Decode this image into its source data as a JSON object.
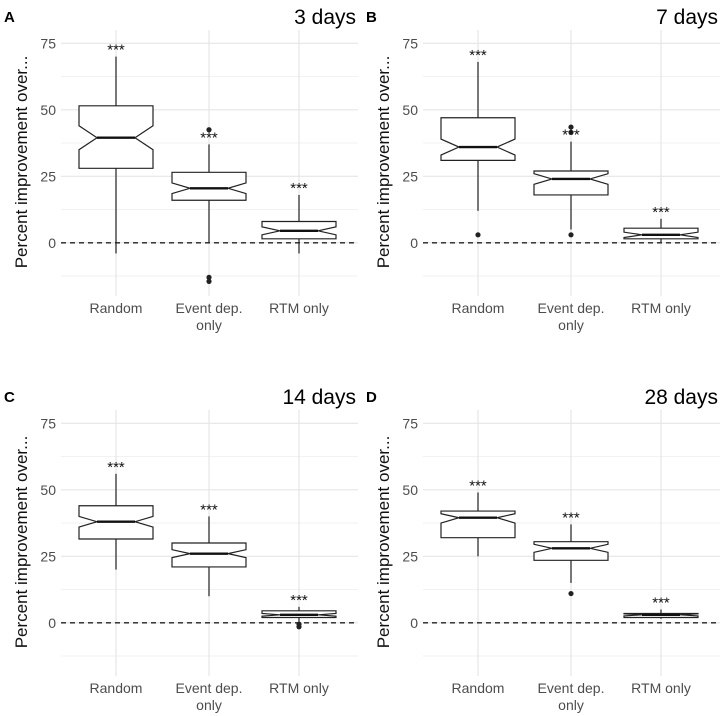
{
  "chart_data": [
    {
      "type": "box",
      "panel_label": "A",
      "title": "3 days",
      "ylabel": "Percent improvement over...",
      "xlabel": "",
      "ylim": [
        -20,
        80
      ],
      "yticks": [
        0,
        25,
        50,
        75
      ],
      "grid": true,
      "reference_line": 0,
      "categories": [
        "Random",
        "Event dep.\nonly",
        "RTM only"
      ],
      "boxes": [
        {
          "name": "Random",
          "whisker_low": -4,
          "q1": 28,
          "median": 39.5,
          "q3": 51.5,
          "whisker_high": 70,
          "notch_low": 35,
          "notch_high": 44,
          "outliers": [],
          "significance": "***"
        },
        {
          "name": "Event dep. only",
          "whisker_low": 0,
          "q1": 16,
          "median": 20.5,
          "q3": 26.5,
          "whisker_high": 37,
          "notch_low": 18.5,
          "notch_high": 22.5,
          "outliers": [
            42.5,
            -13,
            -14.5
          ],
          "significance": "***"
        },
        {
          "name": "RTM only",
          "whisker_low": -4,
          "q1": 1.5,
          "median": 4.5,
          "q3": 8,
          "whisker_high": 18,
          "notch_low": 3,
          "notch_high": 6,
          "outliers": [],
          "significance": "***"
        }
      ]
    },
    {
      "type": "box",
      "panel_label": "B",
      "title": "7 days",
      "ylabel": "Percent improvement over...",
      "xlabel": "",
      "ylim": [
        -20,
        80
      ],
      "yticks": [
        0,
        25,
        50,
        75
      ],
      "grid": true,
      "reference_line": 0,
      "categories": [
        "Random",
        "Event dep.\nonly",
        "RTM only"
      ],
      "boxes": [
        {
          "name": "Random",
          "whisker_low": 12,
          "q1": 31,
          "median": 36,
          "q3": 47,
          "whisker_high": 68,
          "notch_low": 33,
          "notch_high": 39,
          "outliers": [
            3
          ],
          "significance": "***"
        },
        {
          "name": "Event dep. only",
          "whisker_low": 5,
          "q1": 18,
          "median": 24,
          "q3": 27,
          "whisker_high": 38,
          "notch_low": 22,
          "notch_high": 26,
          "outliers": [
            43.5,
            41.5,
            3
          ],
          "significance": "***"
        },
        {
          "name": "RTM only",
          "whisker_low": 0,
          "q1": 1.5,
          "median": 3,
          "q3": 5.5,
          "whisker_high": 9,
          "notch_low": 2,
          "notch_high": 4,
          "outliers": [],
          "significance": "***"
        }
      ]
    },
    {
      "type": "box",
      "panel_label": "C",
      "title": "14 days",
      "ylabel": "Percent improvement over...",
      "xlabel": "",
      "ylim": [
        -20,
        80
      ],
      "yticks": [
        0,
        25,
        50,
        75
      ],
      "grid": true,
      "reference_line": 0,
      "categories": [
        "Random",
        "Event dep.\nonly",
        "RTM only"
      ],
      "boxes": [
        {
          "name": "Random",
          "whisker_low": 20,
          "q1": 31.5,
          "median": 38,
          "q3": 44,
          "whisker_high": 56,
          "notch_low": 36,
          "notch_high": 40,
          "outliers": [],
          "significance": "***"
        },
        {
          "name": "Event dep. only",
          "whisker_low": 10,
          "q1": 21,
          "median": 26,
          "q3": 30,
          "whisker_high": 40,
          "notch_low": 24.5,
          "notch_high": 27.5,
          "outliers": [],
          "significance": "***"
        },
        {
          "name": "RTM only",
          "whisker_low": 0.5,
          "q1": 2,
          "median": 3,
          "q3": 4.5,
          "whisker_high": 6,
          "notch_low": 2.5,
          "notch_high": 3.5,
          "outliers": [
            -0.5,
            -1.5
          ],
          "significance": "***"
        }
      ]
    },
    {
      "type": "box",
      "panel_label": "D",
      "title": "28 days",
      "ylabel": "Percent improvement over...",
      "xlabel": "",
      "ylim": [
        -20,
        80
      ],
      "yticks": [
        0,
        25,
        50,
        75
      ],
      "grid": true,
      "reference_line": 0,
      "categories": [
        "Random",
        "Event dep.\nonly",
        "RTM only"
      ],
      "boxes": [
        {
          "name": "Random",
          "whisker_low": 25,
          "q1": 32,
          "median": 39.5,
          "q3": 42,
          "whisker_high": 49,
          "notch_low": 37.5,
          "notch_high": 41,
          "outliers": [],
          "significance": "***"
        },
        {
          "name": "Event dep. only",
          "whisker_low": 15,
          "q1": 23.5,
          "median": 28,
          "q3": 30.5,
          "whisker_high": 37,
          "notch_low": 26.5,
          "notch_high": 29.5,
          "outliers": [
            11
          ],
          "significance": "***"
        },
        {
          "name": "RTM only",
          "whisker_low": 1.5,
          "q1": 2,
          "median": 3,
          "q3": 3.5,
          "whisker_high": 5,
          "notch_low": 2.6,
          "notch_high": 3.4,
          "outliers": [],
          "significance": "***"
        }
      ]
    }
  ]
}
